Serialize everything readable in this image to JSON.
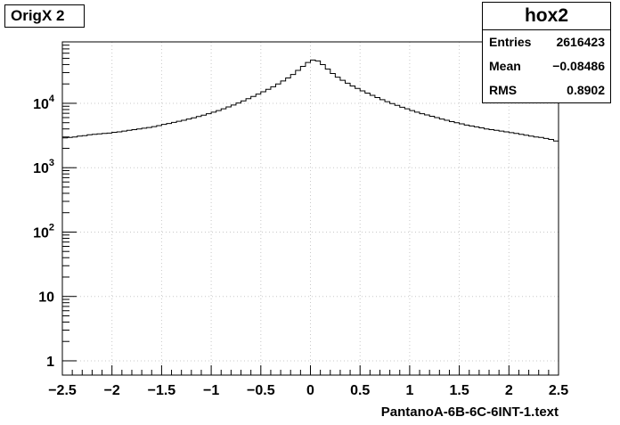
{
  "chart_data": {
    "type": "histogram",
    "title": "OrigX 2",
    "xlabel": "PantanoA-6B-6C-6INT-1.text",
    "ylabel": "",
    "xlim": [
      -2.5,
      2.5
    ],
    "ylim_log": [
      0.6,
      90000
    ],
    "y_scale": "log",
    "grid": true,
    "x_ticks": [
      -2.5,
      -2,
      -1.5,
      -1,
      -0.5,
      0,
      0.5,
      1,
      1.5,
      2,
      2.5
    ],
    "x_tick_labels": [
      "−2.5",
      "−2",
      "−1.5",
      "−1",
      "−0.5",
      "0",
      "0.5",
      "1",
      "1.5",
      "2",
      "2.5"
    ],
    "y_ticks": [
      1,
      10,
      100,
      1000,
      10000
    ],
    "y_tick_labels": [
      {
        "base": "1",
        "exp": ""
      },
      {
        "base": "10",
        "exp": ""
      },
      {
        "base": "10",
        "exp": "2"
      },
      {
        "base": "10",
        "exp": "3"
      },
      {
        "base": "10",
        "exp": "4"
      }
    ],
    "bins": 100,
    "x_edges_range": [
      -2.5,
      2.5
    ],
    "values": [
      2900,
      2950,
      3000,
      3100,
      3150,
      3250,
      3300,
      3350,
      3400,
      3450,
      3550,
      3600,
      3700,
      3800,
      3900,
      4000,
      4100,
      4200,
      4350,
      4500,
      4700,
      4850,
      5050,
      5250,
      5450,
      5700,
      5950,
      6250,
      6550,
      6900,
      7300,
      7700,
      8200,
      8800,
      9400,
      10100,
      10900,
      11800,
      12800,
      13900,
      15100,
      16500,
      18100,
      20000,
      22200,
      24800,
      28000,
      32500,
      37500,
      43000,
      47000,
      45500,
      40000,
      34000,
      29000,
      25500,
      22800,
      20500,
      18600,
      17000,
      15600,
      14400,
      13300,
      12300,
      11400,
      10600,
      9900,
      9300,
      8700,
      8200,
      7700,
      7300,
      6900,
      6600,
      6300,
      6000,
      5700,
      5450,
      5200,
      5000,
      4800,
      4600,
      4450,
      4300,
      4150,
      4000,
      3900,
      3800,
      3700,
      3600,
      3500,
      3400,
      3300,
      3200,
      3100,
      3000,
      2950,
      2850,
      2750,
      2600
    ]
  },
  "stats_box": {
    "name": "hox2",
    "rows": [
      {
        "label": "Entries",
        "value": "2616423"
      },
      {
        "label": "Mean",
        "value": "−0.08486"
      },
      {
        "label": "RMS",
        "value": "0.8902"
      }
    ]
  }
}
